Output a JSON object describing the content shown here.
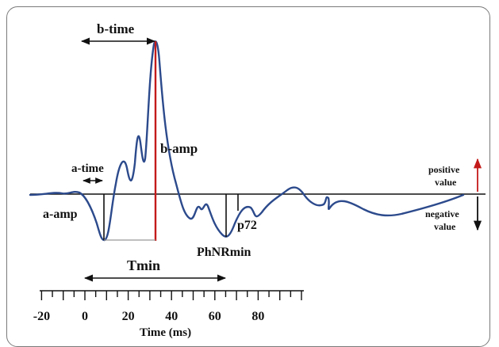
{
  "labels": {
    "b_time": "b-time",
    "b_amp": "b-amp",
    "a_time": "a-time",
    "a_amp": "a-amp",
    "p72": "p72",
    "phnr_min": "PhNRmin",
    "tmin": "Tmin",
    "positive_value": "positive\nvalue",
    "negative_value": "negative\nvalue",
    "axis_title": "Time (ms)"
  },
  "axis": {
    "tick_labels": [
      "-20",
      "0",
      "20",
      "40",
      "60",
      "80"
    ]
  },
  "colors": {
    "waveform": "#2c4a8c",
    "b_amp_line": "#c41a1a",
    "positive_arrow": "#c41a1a",
    "markers": "#111111"
  }
}
